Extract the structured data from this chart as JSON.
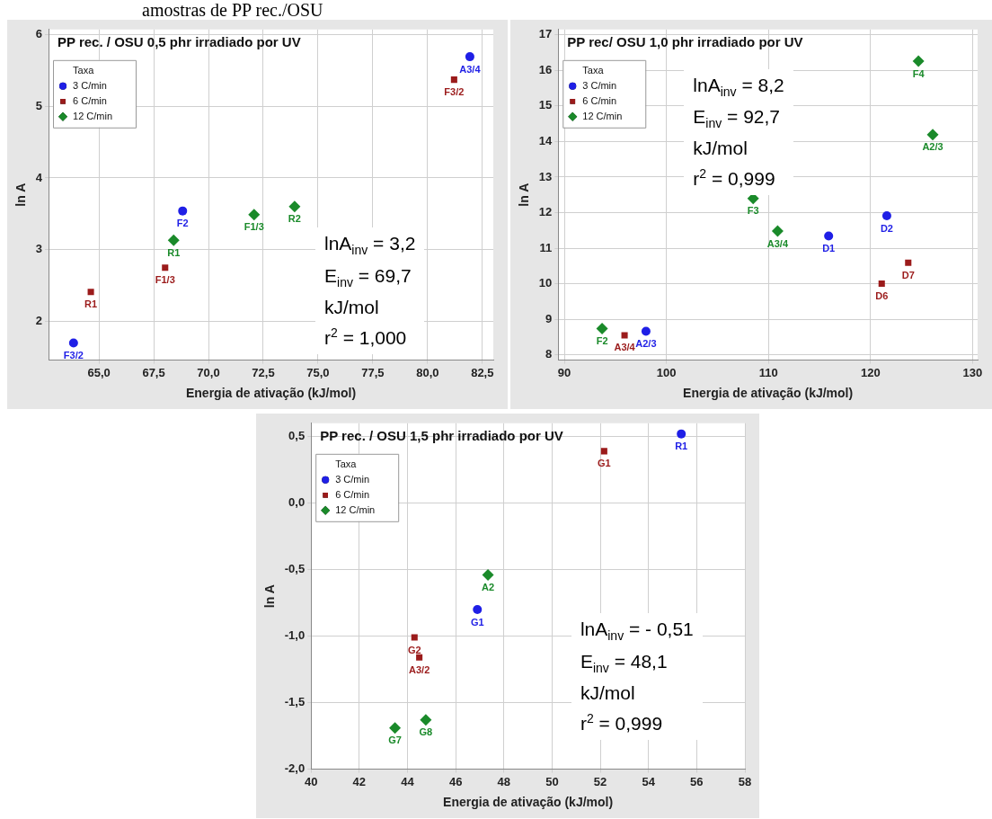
{
  "chart_data": [
    {
      "type": "scatter",
      "title": "PP rec. / OSU 0,5 phr irradiado por UV",
      "subtitle": "amostras de PP rec./OSU",
      "xlabel": "Energia de ativação (kJ/mol)",
      "ylabel": "ln A",
      "legend_title": "Taxa",
      "legend": "top left",
      "grid": true,
      "xlim": [
        62.7,
        83.0
      ],
      "xticks": [
        {
          "value": 65,
          "label": "65,0"
        },
        {
          "value": 67.5,
          "label": "67,5"
        },
        {
          "value": 70,
          "label": "70,0"
        },
        {
          "value": 72.5,
          "label": "72,5"
        },
        {
          "value": 75,
          "label": "75,0"
        },
        {
          "value": 77.5,
          "label": "77,5"
        },
        {
          "value": 80,
          "label": "80,0"
        },
        {
          "value": 82.5,
          "label": "82,5"
        }
      ],
      "ylim": [
        1.46,
        6.07
      ],
      "yticks": [
        2,
        3,
        4,
        5,
        6
      ],
      "series": [
        {
          "name": "3 C/min",
          "color": "#1f1fe6",
          "marker": "circle",
          "x": [
            63.84,
            68.82,
            81.93
          ],
          "values": [
            1.7,
            3.54,
            5.69
          ],
          "value_labels": [
            "F3/2",
            "F2",
            "A3/4"
          ]
        },
        {
          "name": "6 C/min",
          "color": "#9b1b1b",
          "marker": "square",
          "x": [
            64.63,
            68.02,
            81.21
          ],
          "values": [
            2.41,
            2.75,
            5.37
          ],
          "value_labels": [
            "R1",
            "F1/3",
            "F3/2"
          ]
        },
        {
          "name": "12 C/min",
          "color": "#1a8a2a",
          "marker": "diamond",
          "x": [
            68.41,
            72.08,
            73.93
          ],
          "values": [
            3.13,
            3.49,
            3.6
          ],
          "value_labels": [
            "R1",
            "F1/3",
            "R2"
          ]
        }
      ],
      "annotations": [
        "lnA$_{inv}$ = 3,2",
        "E$_{inv}$ = 69,7",
        "kJ/mol",
        "r$^{2}$ = 1,000"
      ]
    },
    {
      "type": "scatter",
      "title": "PP rec/ OSU 1,0 phr irradiado por UV",
      "xlabel": "Energia de ativação (kJ/mol)",
      "ylabel": "ln A",
      "legend_title": "Taxa",
      "legend": "top left",
      "grid": true,
      "xlim": [
        89.4,
        130.5
      ],
      "xticks": [
        90,
        100,
        110,
        120,
        130
      ],
      "ylim": [
        7.85,
        17.15
      ],
      "yticks": [
        8,
        9,
        10,
        11,
        12,
        13,
        14,
        15,
        16,
        17
      ],
      "series": [
        {
          "name": "3 C/min",
          "color": "#1f1fe6",
          "marker": "circle",
          "x": [
            98.0,
            115.9,
            121.6
          ],
          "values": [
            8.66,
            11.34,
            11.91
          ],
          "value_labels": [
            "A2/3",
            "D1",
            "D2"
          ]
        },
        {
          "name": "6 C/min",
          "color": "#9b1b1b",
          "marker": "square",
          "x": [
            95.9,
            121.1,
            123.7
          ],
          "values": [
            8.55,
            10.0,
            10.59
          ],
          "value_labels": [
            "A3/4",
            "D6",
            "D7"
          ]
        },
        {
          "name": "12 C/min",
          "color": "#1a8a2a",
          "marker": "diamond",
          "x": [
            93.7,
            108.5,
            110.9,
            124.7,
            126.1
          ],
          "values": [
            8.74,
            12.4,
            11.48,
            16.26,
            14.19
          ],
          "value_labels": [
            "F2",
            "F3",
            "A3/4",
            "F4",
            "A2/3"
          ]
        }
      ],
      "annotations": [
        "lnA$_{inv}$ = 8,2",
        "E$_{inv}$ = 92,7",
        "kJ/mol",
        "r$^{2}$ = 0,999"
      ]
    },
    {
      "type": "scatter",
      "title": "PP rec. / OSU 1,5 phr irradiado por UV",
      "xlabel": "Energia de ativação (kJ/mol)",
      "ylabel": "ln A",
      "legend_title": "Taxa",
      "legend": "top left",
      "grid": true,
      "xlim": [
        40,
        58
      ],
      "xticks": [
        40,
        42,
        44,
        46,
        48,
        50,
        52,
        54,
        56,
        58
      ],
      "ylim": [
        -2.0,
        0.6
      ],
      "yticks": [
        {
          "value": -2,
          "label": "-2,0"
        },
        {
          "value": -1.5,
          "label": "-1,5"
        },
        {
          "value": -1,
          "label": "-1,0"
        },
        {
          "value": -0.5,
          "label": "-0,5"
        },
        {
          "value": 0,
          "label": "0,0"
        },
        {
          "value": 0.5,
          "label": "0,5"
        }
      ],
      "series": [
        {
          "name": "3 C/min",
          "color": "#1f1fe6",
          "marker": "circle",
          "x": [
            46.9,
            55.36
          ],
          "values": [
            -0.8,
            0.52
          ],
          "value_labels": [
            "G1",
            "R1"
          ]
        },
        {
          "name": "6 C/min",
          "color": "#9b1b1b",
          "marker": "square",
          "x": [
            52.16,
            44.29,
            44.49
          ],
          "values": [
            0.39,
            -1.01,
            -1.16
          ],
          "value_labels": [
            "G1",
            "G2",
            "A3/2"
          ]
        },
        {
          "name": "12 C/min",
          "color": "#1a8a2a",
          "marker": "diamond",
          "x": [
            47.34,
            43.48,
            44.76
          ],
          "values": [
            -0.54,
            -1.69,
            -1.63
          ],
          "value_labels": [
            "A2",
            "G7",
            "G8"
          ]
        }
      ],
      "annotations": [
        "lnA$_{inv}$ = - 0,51",
        "E$_{inv}$ = 48,1",
        "kJ/mol",
        "r$^{2}$ = 0,999"
      ]
    }
  ]
}
